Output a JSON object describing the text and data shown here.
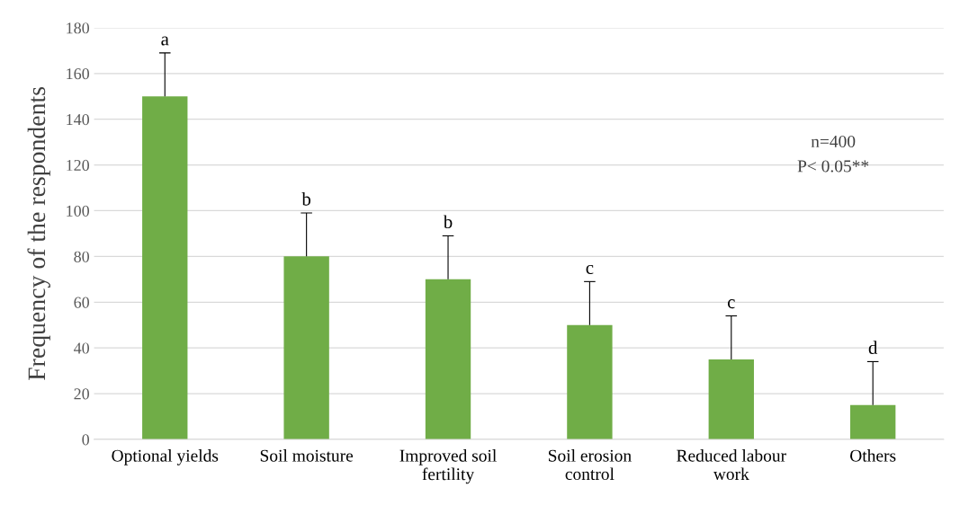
{
  "chart_data": {
    "type": "bar",
    "ylabel": "Frequency of the respondents",
    "categories": [
      "Optional yields",
      "Soil moisture",
      "Improved soil\nfertility",
      "Soil erosion\ncontrol",
      "Reduced labour\nwork",
      "Others"
    ],
    "values": [
      150,
      80,
      70,
      50,
      35,
      15
    ],
    "errors": [
      [
        150,
        169
      ],
      [
        80,
        99
      ],
      [
        70,
        89
      ],
      [
        50,
        69
      ],
      [
        35,
        54
      ],
      [
        15,
        34
      ]
    ],
    "color": "#70ad47",
    "ylim": [
      0,
      180
    ],
    "yticks": [
      0,
      20,
      40,
      60,
      80,
      100,
      120,
      140,
      160,
      180
    ],
    "grid": "y",
    "annotations": [
      {
        "text": "a",
        "x": "Optional yields",
        "y": 169
      },
      {
        "text": "b",
        "x": "Soil moisture",
        "y": 99
      },
      {
        "text": "b",
        "x": "Improved soil\nfertility",
        "y": 89
      },
      {
        "text": "c",
        "x": "Soil erosion\ncontrol",
        "y": 69
      },
      {
        "text": "c",
        "x": "Reduced labour\nwork",
        "y": 54
      },
      {
        "text": "d",
        "x": "Others",
        "y": 34
      },
      "n=400",
      "P< 0.05**"
    ]
  }
}
